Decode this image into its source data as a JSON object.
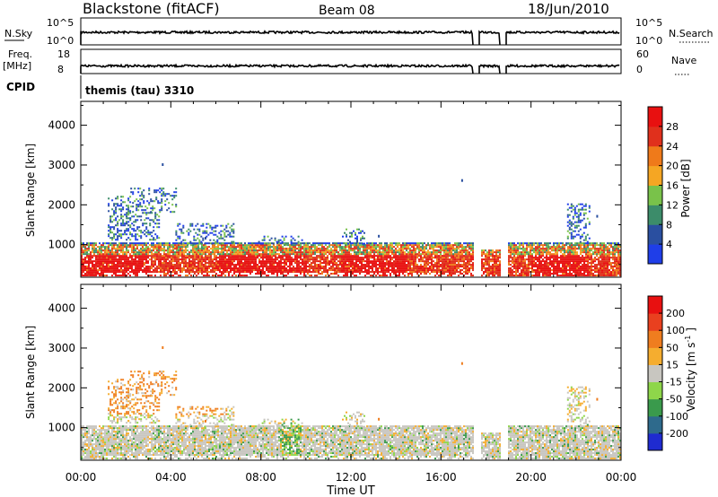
{
  "header": {
    "station": "Blackstone (fitACF)",
    "beam": "Beam 08",
    "date": "18/Jun/2010"
  },
  "params": {
    "nsky_label": "N.Sky",
    "nsearch_label": "N.Search",
    "freq_label": "Freq.",
    "freq_unit": "[MHz]",
    "nave_label": "Nave",
    "cpid_label": "CPID",
    "nsky_ticks": [
      "10^5",
      "10^0"
    ],
    "nsearch_ticks": [
      "10^5",
      "10^0"
    ],
    "freq_ticks": [
      "18",
      "8"
    ],
    "nave_ticks": [
      "60",
      "0"
    ],
    "cpid_text": "themis (tau) 3310"
  },
  "colors": {
    "power_scale": [
      "#1f3ee8",
      "#2a4fa0",
      "#3c8c6a",
      "#79c24a",
      "#f5a623",
      "#ef7a1a",
      "#e0301c",
      "#e81010"
    ],
    "velocity_scale": [
      "#1f2bd0",
      "#2e6a8c",
      "#3a9a4c",
      "#8ed64a",
      "#c8c6c0",
      "#f5ad2f",
      "#ef7d1f",
      "#e9401f",
      "#e81010"
    ]
  },
  "chart_data": [
    {
      "type": "heatmap",
      "title": "",
      "xlabel": "",
      "ylabel": "Slant Range [km]",
      "x_ticks": [
        "00:00",
        "04:00",
        "08:00",
        "12:00",
        "16:00",
        "20:00",
        "00:00"
      ],
      "y_ticks": [
        "1000",
        "2000",
        "3000",
        "4000"
      ],
      "ylim": [
        180,
        4600
      ],
      "colorbar_label": "Power [dB]",
      "colorbar_ticks": [
        "4",
        "8",
        "12",
        "16",
        "20",
        "24",
        "28"
      ],
      "colorbar_range": [
        0,
        32
      ]
    },
    {
      "type": "heatmap",
      "title": "",
      "xlabel": "Time UT",
      "ylabel": "Slant Range [km]",
      "x_ticks": [
        "00:00",
        "04:00",
        "08:00",
        "12:00",
        "16:00",
        "20:00",
        "00:00"
      ],
      "y_ticks": [
        "1000",
        "2000",
        "3000",
        "4000"
      ],
      "ylim": [
        180,
        4600
      ],
      "colorbar_label": "Velocity [m s^-1]",
      "colorbar_ticks": [
        "200",
        "100",
        "50",
        "15",
        "-15",
        "-50",
        "-100",
        "-200"
      ]
    }
  ]
}
